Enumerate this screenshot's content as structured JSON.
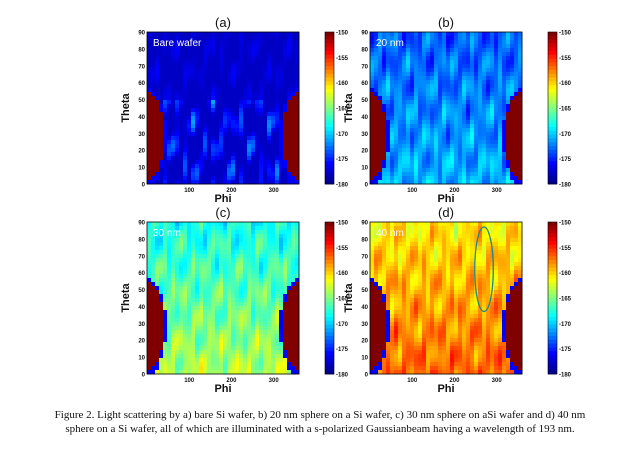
{
  "chart_data": [
    {
      "type": "heatmap",
      "panel_label": "(a)",
      "annotation": "Bare wafer",
      "xlabel": "Phi",
      "ylabel": "Theta",
      "x_ticks": [
        "100",
        "200",
        "300"
      ],
      "y_ticks": [
        "0",
        "10",
        "20",
        "30",
        "40",
        "50",
        "60",
        "70",
        "80",
        "90"
      ],
      "xlim": [
        0,
        360
      ],
      "ylim": [
        0,
        90
      ],
      "colorbar_ticks": [
        "-150",
        "-155",
        "-160",
        "-165",
        "-170",
        "-175",
        "-180"
      ],
      "colorbar_range": [
        -180,
        -150
      ],
      "field_level": 0.06,
      "top_level": 0.1,
      "lobe_phi": [
        0,
        360
      ],
      "lobe_theta": [
        0,
        55
      ],
      "has_ellipse": false
    },
    {
      "type": "heatmap",
      "panel_label": "(b)",
      "annotation": "20 nm",
      "xlabel": "Phi",
      "ylabel": "Theta",
      "x_ticks": [
        "100",
        "200",
        "300"
      ],
      "y_ticks": [
        "0",
        "10",
        "20",
        "30",
        "40",
        "50",
        "60",
        "70",
        "80",
        "90"
      ],
      "xlim": [
        0,
        360
      ],
      "ylim": [
        0,
        90
      ],
      "colorbar_ticks": [
        "-150",
        "-155",
        "-160",
        "-165",
        "-170",
        "-175",
        "-180"
      ],
      "colorbar_range": [
        -180,
        -150
      ],
      "field_level": 0.3,
      "top_level": 0.15,
      "lobe_phi": [
        0,
        360
      ],
      "lobe_theta": [
        0,
        55
      ],
      "has_ellipse": false
    },
    {
      "type": "heatmap",
      "panel_label": "(c)",
      "annotation": "30 nm",
      "xlabel": "Phi",
      "ylabel": "Theta",
      "x_ticks": [
        "100",
        "200",
        "300"
      ],
      "y_ticks": [
        "0",
        "10",
        "20",
        "30",
        "40",
        "50",
        "60",
        "70",
        "80",
        "90"
      ],
      "xlim": [
        0,
        360
      ],
      "ylim": [
        0,
        90
      ],
      "colorbar_ticks": [
        "-150",
        "-155",
        "-160",
        "-165",
        "-170",
        "-175",
        "-180"
      ],
      "colorbar_range": [
        -180,
        -150
      ],
      "field_level": 0.55,
      "top_level": 0.28,
      "lobe_phi": [
        0,
        360
      ],
      "lobe_theta": [
        0,
        55
      ],
      "has_ellipse": false
    },
    {
      "type": "heatmap",
      "panel_label": "(d)",
      "annotation": "40 nm",
      "xlabel": "Phi",
      "ylabel": "Theta",
      "x_ticks": [
        "100",
        "200",
        "300"
      ],
      "y_ticks": [
        "0",
        "10",
        "20",
        "30",
        "40",
        "50",
        "60",
        "70",
        "80",
        "90"
      ],
      "xlim": [
        0,
        360
      ],
      "ylim": [
        0,
        90
      ],
      "colorbar_ticks": [
        "-150",
        "-155",
        "-160",
        "-165",
        "-170",
        "-175",
        "-180"
      ],
      "colorbar_range": [
        -180,
        -150
      ],
      "field_level": 0.78,
      "top_level": 0.55,
      "lobe_phi": [
        0,
        360
      ],
      "lobe_theta": [
        0,
        55
      ],
      "has_ellipse": true,
      "ellipse": {
        "phi_center": 270,
        "theta_center": 62,
        "phi_half_width": 22,
        "theta_half_height": 25
      }
    }
  ],
  "caption": "Figure 2. Light scattering by a) bare Si wafer, b) 20 nm sphere on a Si wafer, c) 30 nm sphere on aSi wafer and d) 40 nm sphere on a Si wafer, all of which are illuminated with a s-polarized Gaussianbeam having a wavelength of 193 nm.",
  "colors": {
    "jet": [
      "#00008f",
      "#0000ff",
      "#0080ff",
      "#00ffff",
      "#80ff80",
      "#ffff00",
      "#ff8000",
      "#ff0000",
      "#800000"
    ],
    "ellipse": "#1a8a8a"
  }
}
